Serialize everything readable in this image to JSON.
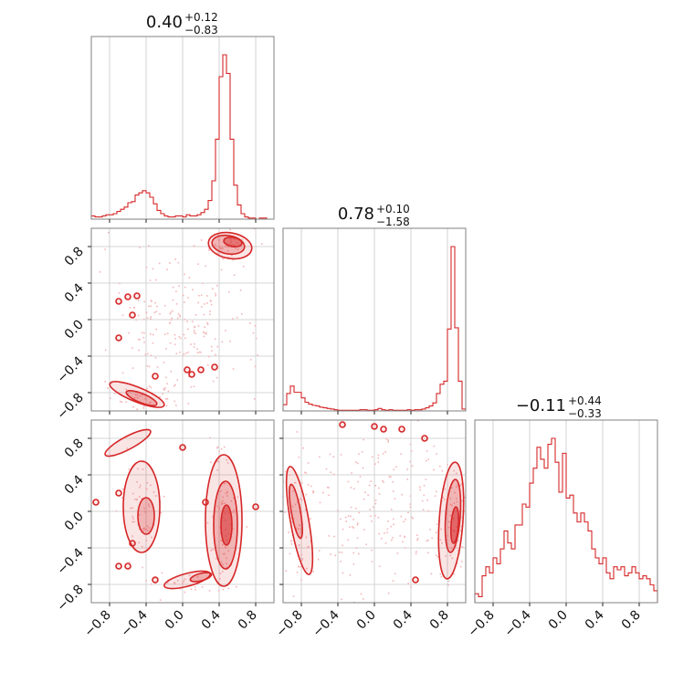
{
  "chart_data": {
    "type": "corner",
    "color": "#d62728",
    "grid": true,
    "parameters": [
      {
        "index": 0,
        "median": "0.40",
        "plus": "+0.12",
        "minus": "−0.83",
        "range": [
          -1.0,
          1.0
        ]
      },
      {
        "index": 1,
        "median": "0.78",
        "plus": "+0.10",
        "minus": "−1.58",
        "range": [
          -1.0,
          1.0
        ]
      },
      {
        "index": 2,
        "median": "−0.11",
        "plus": "+0.44",
        "minus": "−0.33",
        "range": [
          -1.0,
          1.0
        ]
      }
    ],
    "tick_values": [
      -0.8,
      -0.4,
      0.0,
      0.4,
      0.8
    ],
    "tick_labels": [
      "−0.8",
      "−0.4",
      "0.0",
      "0.4",
      "0.8"
    ],
    "histograms": [
      {
        "param": 0,
        "bin_edges_start": -1.0,
        "bin_width": 0.04,
        "counts": [
          3,
          2,
          2,
          3,
          4,
          4,
          5,
          7,
          9,
          11,
          15,
          16,
          22,
          24,
          26,
          24,
          20,
          14,
          8,
          5,
          3,
          2,
          2,
          3,
          3,
          2,
          4,
          3,
          3,
          4,
          6,
          9,
          17,
          35,
          73,
          130,
          150,
          133,
          73,
          31,
          13,
          5,
          2,
          1,
          1,
          0,
          1,
          1,
          0,
          0
        ]
      },
      {
        "param": 1,
        "bin_edges_start": -1.0,
        "bin_width": 0.04,
        "counts": [
          10,
          28,
          40,
          30,
          30,
          21,
          14,
          11,
          9,
          8,
          6,
          5,
          4,
          3,
          2,
          1,
          1,
          1,
          1,
          1,
          1,
          2,
          2,
          1,
          1,
          2,
          4,
          2,
          1,
          2,
          1,
          1,
          1,
          1,
          2,
          1,
          2,
          2,
          3,
          5,
          8,
          13,
          28,
          43,
          48,
          132,
          265,
          134,
          48,
          3
        ]
      },
      {
        "param": 2,
        "bin_edges_start": -1.0,
        "bin_width": 0.04,
        "counts": [
          3,
          2,
          9,
          12,
          10,
          15,
          13,
          18,
          24,
          20,
          18,
          26,
          26,
          33,
          32,
          40,
          45,
          52,
          48,
          45,
          53,
          55,
          47,
          37,
          50,
          35,
          36,
          30,
          27,
          30,
          27,
          24,
          18,
          15,
          13,
          15,
          10,
          8,
          12,
          11,
          12,
          9,
          10,
          12,
          10,
          8,
          9,
          8,
          6,
          4
        ]
      }
    ],
    "pairs": [
      {
        "x_param": 0,
        "y_param": 1,
        "note": "2D contours: dense cluster near (0.5, 0.8), band near (-0.6..-0.2, -0.9), scattered islands"
      },
      {
        "x_param": 0,
        "y_param": 2,
        "note": "2D contours: vertical band near x=0.45, ring near x=-0.45, arc at top-left, bottom arc"
      },
      {
        "x_param": 1,
        "y_param": 2,
        "note": "2D contours: crescent near x=0.85, crescent near x=-0.85, few islands at top"
      }
    ]
  }
}
